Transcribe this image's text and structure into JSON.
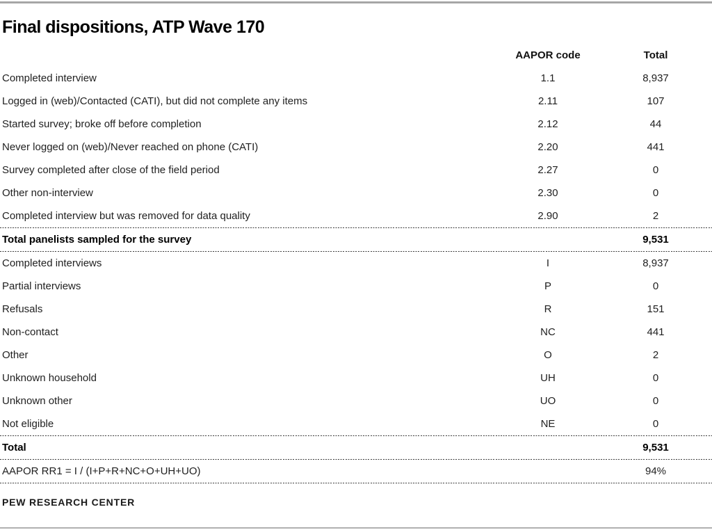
{
  "title": "Final dispositions, ATP Wave 170",
  "table": {
    "headers": {
      "label": "",
      "code": "AAPOR code",
      "total": "Total"
    },
    "rows": [
      {
        "label": "Completed interview",
        "code": "1.1",
        "total": "8,937",
        "bold": false
      },
      {
        "label": "Logged in (web)/Contacted (CATI), but did not complete any items",
        "code": "2.11",
        "total": "107",
        "bold": false
      },
      {
        "label": "Started survey; broke off before completion",
        "code": "2.12",
        "total": "44",
        "bold": false
      },
      {
        "label": "Never logged on (web)/Never reached on phone (CATI)",
        "code": "2.20",
        "total": "441",
        "bold": false
      },
      {
        "label": "Survey completed after close of the field period",
        "code": "2.27",
        "total": "0",
        "bold": false
      },
      {
        "label": "Other non-interview",
        "code": "2.30",
        "total": "0",
        "bold": false
      },
      {
        "label": "Completed interview but was removed for data quality",
        "code": "2.90",
        "total": "2",
        "bold": false
      },
      {
        "label": "Total panelists sampled for the survey",
        "code": "",
        "total": "9,531",
        "bold": true,
        "separator_above": true,
        "separator_below": true
      },
      {
        "label": "Completed interviews",
        "code": "I",
        "total": "8,937",
        "bold": false
      },
      {
        "label": "Partial interviews",
        "code": "P",
        "total": "0",
        "bold": false
      },
      {
        "label": "Refusals",
        "code": "R",
        "total": "151",
        "bold": false
      },
      {
        "label": "Non-contact",
        "code": "NC",
        "total": "441",
        "bold": false
      },
      {
        "label": "Other",
        "code": "O",
        "total": "2",
        "bold": false
      },
      {
        "label": "Unknown household",
        "code": "UH",
        "total": "0",
        "bold": false
      },
      {
        "label": "Unknown other",
        "code": "UO",
        "total": "0",
        "bold": false
      },
      {
        "label": "Not eligible",
        "code": "NE",
        "total": "0",
        "bold": false
      },
      {
        "label": "Total",
        "code": "",
        "total": "9,531",
        "bold": true,
        "separator_above": true,
        "separator_below": true
      },
      {
        "label": "AAPOR RR1 = I / (I+P+R+NC+O+UH+UO)",
        "code": "",
        "total": "94%",
        "bold": false,
        "separator_below": true
      }
    ]
  },
  "footer": "PEW RESEARCH CENTER",
  "colors": {
    "top_rule": "#a6a6a6",
    "bottom_rule": "#b0b0b0",
    "text": "#1f1f1f",
    "separator_dashes": "#3c3c3c"
  }
}
